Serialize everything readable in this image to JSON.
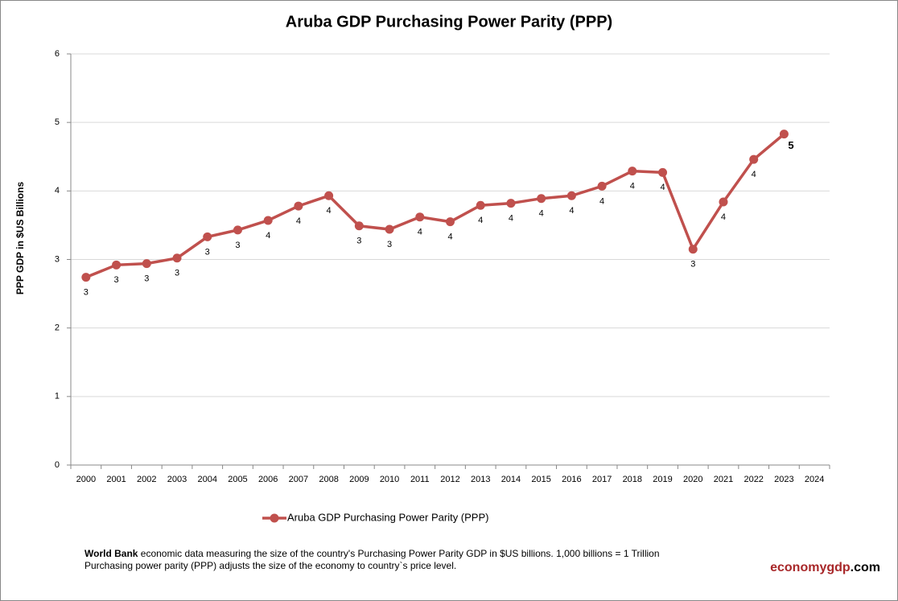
{
  "chart_data": {
    "type": "line",
    "title": "Aruba GDP Purchasing Power Parity (PPP)",
    "y_label": "PPP GDP in $US Billions",
    "categories": [
      "2000",
      "2001",
      "2002",
      "2003",
      "2004",
      "2005",
      "2006",
      "2007",
      "2008",
      "2009",
      "2010",
      "2011",
      "2012",
      "2013",
      "2014",
      "2015",
      "2016",
      "2017",
      "2018",
      "2019",
      "2020",
      "2021",
      "2022",
      "2023",
      "2024"
    ],
    "series": [
      {
        "name": "Aruba GDP Purchasing Power Parity (PPP)",
        "color": "#c0504d",
        "values": [
          2.74,
          2.92,
          2.94,
          3.02,
          3.33,
          3.43,
          3.57,
          3.78,
          3.93,
          3.49,
          3.44,
          3.62,
          3.55,
          3.79,
          3.82,
          3.89,
          3.93,
          4.07,
          4.29,
          4.27,
          3.15,
          3.84,
          4.46,
          4.83,
          null
        ],
        "value_labels": [
          "3",
          "3",
          "3",
          "3",
          "3",
          "3",
          "4",
          "4",
          "4",
          "3",
          "3",
          "4",
          "4",
          "4",
          "4",
          "4",
          "4",
          "4",
          "4",
          "4",
          "3",
          "4",
          "4",
          "5",
          null
        ]
      }
    ],
    "ylim": [
      0,
      6
    ],
    "yticks": [
      0,
      1,
      2,
      3,
      4,
      5,
      6
    ],
    "grid": true,
    "note_bold": "World Bank",
    "note_text": " economic data  measuring the size of the country's Purchasing Power Parity GDP in $US billions. 1,000 billions = 1 Trillion",
    "note_text_2": "Purchasing power parity (PPP) adjusts the size of the economy to country`s price level.",
    "brand": [
      "economygdp",
      ".com"
    ]
  }
}
